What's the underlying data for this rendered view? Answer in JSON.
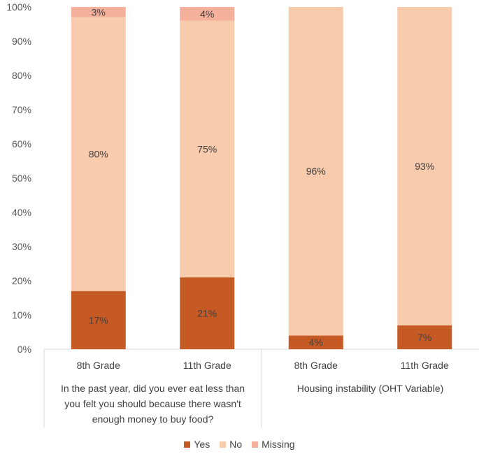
{
  "chart_data": {
    "type": "stacked-bar",
    "y_ticks": [
      "0%",
      "10%",
      "20%",
      "30%",
      "40%",
      "50%",
      "60%",
      "70%",
      "80%",
      "90%",
      "100%"
    ],
    "ylim": [
      0,
      100
    ],
    "groups": [
      {
        "label": "In the past year, did you ever eat less than you felt you should because there wasn't enough money to buy food?",
        "label_lines": [
          "In the past year, did you ever eat less than",
          "you felt you should because there wasn't",
          "enough money to buy food?"
        ],
        "categories": [
          "8th Grade",
          "11th Grade"
        ]
      },
      {
        "label": "Housing instability (OHT Variable)",
        "label_lines": [
          "Housing instability (OHT Variable)"
        ],
        "categories": [
          "8th Grade",
          "11th Grade"
        ]
      }
    ],
    "series": [
      {
        "name": "Yes",
        "color": "#C55A24",
        "values": [
          17,
          21,
          4,
          7
        ],
        "labels": [
          "17%",
          "21%",
          "4%",
          "7%"
        ]
      },
      {
        "name": "No",
        "color": "#F8CBAD",
        "values": [
          80,
          75,
          96,
          93
        ],
        "labels": [
          "80%",
          "75%",
          "96%",
          "93%"
        ]
      },
      {
        "name": "Missing",
        "color": "#F4B09B",
        "values": [
          3,
          4,
          0,
          0
        ],
        "labels": [
          "3%",
          "4%",
          "",
          ""
        ]
      }
    ],
    "legend": {
      "position": "bottom"
    },
    "grid": false
  }
}
